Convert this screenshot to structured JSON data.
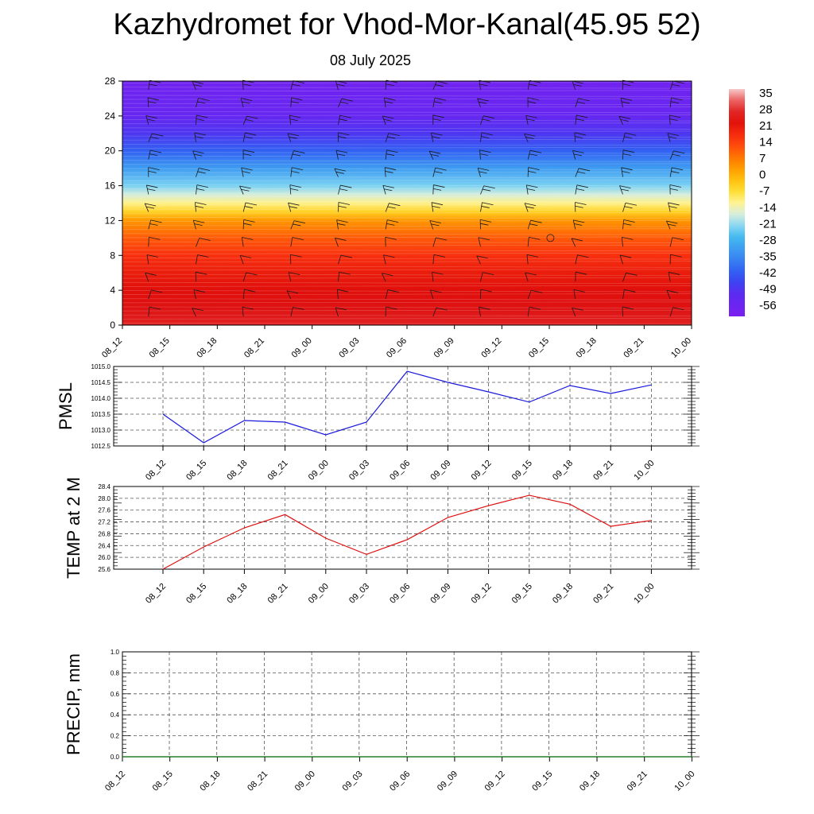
{
  "header": {
    "title": "Kazhydromet for Vhod-Mor-Kanal(45.95 52)",
    "subtitle": "08 July 2025"
  },
  "chart_data": [
    {
      "type": "heatmap",
      "description_role": "vertical cross-section temperature with wind barbs",
      "x_labels": [
        "08_12",
        "08_15",
        "08_18",
        "08_21",
        "09_00",
        "09_03",
        "09_06",
        "09_09",
        "09_12",
        "09_15",
        "09_18",
        "09_21",
        "10_00"
      ],
      "y_ticks": [
        0,
        4,
        8,
        12,
        16,
        20,
        24,
        28
      ],
      "ylim": [
        0,
        28
      ],
      "colorbar_labels": [
        "35",
        "28",
        "21",
        "14",
        "7",
        "0",
        "-7",
        "-14",
        "-21",
        "-28",
        "-35",
        "-42",
        "-49",
        "-56"
      ],
      "colorbar_range": [
        -63,
        42
      ],
      "colormap_stops": [
        {
          "value": -63,
          "color": "#7b1ff0"
        },
        {
          "value": -52,
          "color": "#5a2cf0"
        },
        {
          "value": -45,
          "color": "#2f4ef2"
        },
        {
          "value": -35,
          "color": "#3a8cf2"
        },
        {
          "value": -25,
          "color": "#46c0f0"
        },
        {
          "value": -18,
          "color": "#bfe8f4"
        },
        {
          "value": -12,
          "color": "#fff8b0"
        },
        {
          "value": -6,
          "color": "#ffe23a"
        },
        {
          "value": 2,
          "color": "#ffb400"
        },
        {
          "value": 10,
          "color": "#ff7a00"
        },
        {
          "value": 18,
          "color": "#ff3a10"
        },
        {
          "value": 28,
          "color": "#dc0a0a"
        },
        {
          "value": 35,
          "color": "#e84040"
        },
        {
          "value": 42,
          "color": "#f6c8c8"
        }
      ],
      "profile_levels": [
        0,
        2,
        4,
        6,
        8,
        10,
        12,
        13,
        14,
        15,
        16,
        18,
        20,
        22,
        24,
        26,
        28
      ],
      "profile_values": [
        31,
        29,
        27,
        24,
        20,
        14,
        6,
        -3,
        -10,
        -16,
        -22,
        -32,
        -42,
        -50,
        -56,
        -58,
        -60
      ]
    },
    {
      "type": "line",
      "ylabel": "PMSL",
      "categories": [
        "08_12",
        "08_15",
        "08_18",
        "08_21",
        "09_00",
        "09_03",
        "09_06",
        "09_09",
        "09_12",
        "09_15",
        "09_18",
        "09_21",
        "10_00"
      ],
      "values": [
        1013.5,
        1012.6,
        1013.3,
        1013.25,
        1012.85,
        1013.25,
        1014.85,
        1014.5,
        1014.2,
        1013.88,
        1014.4,
        1014.15,
        1014.42
      ],
      "y_ticks": [
        "1012.5",
        "1013.0",
        "1013.5",
        "1014.0",
        "1014.5",
        "1015.0"
      ],
      "ylim": [
        1012.5,
        1015.0
      ],
      "color": "#1a1adc",
      "grid": true
    },
    {
      "type": "line",
      "ylabel": "TEMP at 2 M",
      "categories": [
        "08_12",
        "08_15",
        "08_18",
        "08_21",
        "09_00",
        "09_03",
        "09_06",
        "09_09",
        "09_12",
        "09_15",
        "09_18",
        "09_21",
        "10_00"
      ],
      "values": [
        25.6,
        26.35,
        27.0,
        27.45,
        26.65,
        26.1,
        26.6,
        27.35,
        27.75,
        28.1,
        27.8,
        27.05,
        27.25
      ],
      "y_ticks": [
        "25.6",
        "26.0",
        "26.4",
        "26.8",
        "27.2",
        "27.6",
        "28.0",
        "28.4"
      ],
      "ylim": [
        25.6,
        28.4
      ],
      "color": "#e01010",
      "grid": true
    },
    {
      "type": "line",
      "ylabel": "PRECIP, mm",
      "categories": [
        "08_12",
        "08_15",
        "08_18",
        "08_21",
        "09_00",
        "09_03",
        "09_06",
        "09_09",
        "09_12",
        "09_15",
        "09_18",
        "09_21",
        "10_00"
      ],
      "values": [
        0,
        0,
        0,
        0,
        0,
        0,
        0,
        0,
        0,
        0,
        0,
        0,
        0
      ],
      "y_ticks": [
        "0.0",
        "0.2",
        "0.4",
        "0.6",
        "0.8",
        "1.0"
      ],
      "ylim": [
        0,
        1.0
      ],
      "color": "#006400",
      "grid": true
    }
  ]
}
